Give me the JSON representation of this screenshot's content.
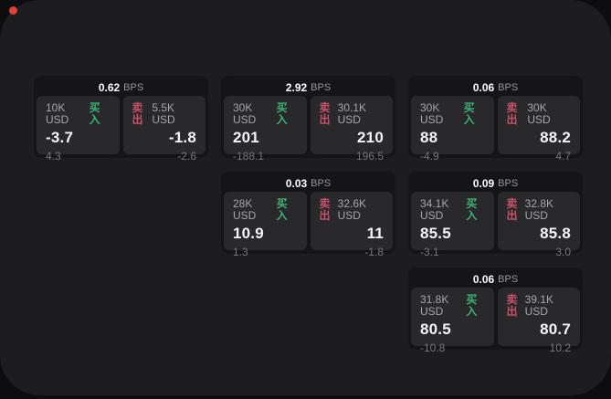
{
  "colors": {
    "page_bg": "#1d1d1f",
    "card_bg": "#151517",
    "panel_bg": "#29292b",
    "buy_accent": "#3db274",
    "sell_accent": "#c9516a",
    "recording_dot": "#e2403a"
  },
  "cards": [
    {
      "row": 1,
      "col": 1,
      "bps_value": "0.62",
      "bps_unit": "BPS",
      "buy": {
        "size": "10K USD",
        "side": "买入",
        "price": "-3.7",
        "delta": "4.3"
      },
      "sell": {
        "side": "卖出",
        "size": "5.5K USD",
        "price": "-1.8",
        "delta": "-2.6"
      }
    },
    {
      "row": 1,
      "col": 2,
      "bps_value": "2.92",
      "bps_unit": "BPS",
      "buy": {
        "size": "30K USD",
        "side": "买入",
        "price": "201",
        "delta": "-188.1"
      },
      "sell": {
        "side": "卖出",
        "size": "30.1K USD",
        "price": "210",
        "delta": "196.5"
      }
    },
    {
      "row": 1,
      "col": 3,
      "bps_value": "0.06",
      "bps_unit": "BPS",
      "buy": {
        "size": "30K USD",
        "side": "买入",
        "price": "88",
        "delta": "-4.9"
      },
      "sell": {
        "side": "卖出",
        "size": "30K USD",
        "price": "88.2",
        "delta": "4.7"
      }
    },
    {
      "row": 2,
      "col": 2,
      "bps_value": "0.03",
      "bps_unit": "BPS",
      "buy": {
        "size": "28K USD",
        "side": "买入",
        "price": "10.9",
        "delta": "1.3"
      },
      "sell": {
        "side": "卖出",
        "size": "32.6K USD",
        "price": "11",
        "delta": "-1.8"
      }
    },
    {
      "row": 2,
      "col": 3,
      "bps_value": "0.09",
      "bps_unit": "BPS",
      "buy": {
        "size": "34.1K USD",
        "side": "买入",
        "price": "85.5",
        "delta": "-3.1"
      },
      "sell": {
        "side": "卖出",
        "size": "32.8K USD",
        "price": "85.8",
        "delta": "3.0"
      }
    },
    {
      "row": 3,
      "col": 3,
      "bps_value": "0.06",
      "bps_unit": "BPS",
      "buy": {
        "size": "31.8K USD",
        "side": "买入",
        "price": "80.5",
        "delta": "-10.8"
      },
      "sell": {
        "side": "卖出",
        "size": "39.1K USD",
        "price": "80.7",
        "delta": "10.2"
      }
    }
  ]
}
